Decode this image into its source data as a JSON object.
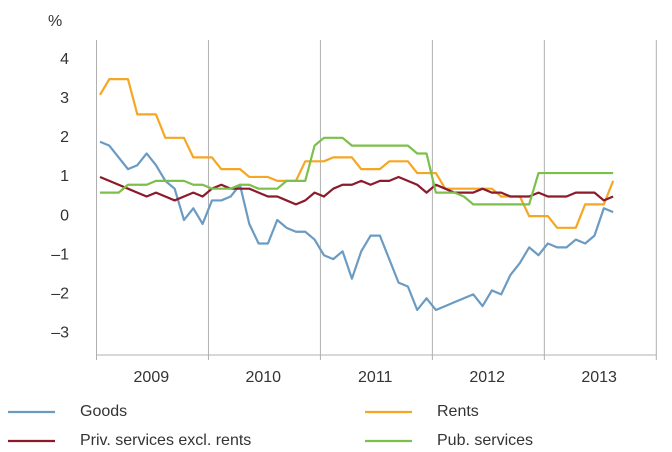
{
  "chart_data": {
    "type": "line",
    "y_label": "%",
    "categories": [
      null,
      null,
      null,
      null,
      null,
      null,
      "2009",
      null,
      null,
      null,
      null,
      null,
      null,
      null,
      null,
      null,
      null,
      null,
      "2010",
      null,
      null,
      null,
      null,
      null,
      null,
      null,
      null,
      null,
      null,
      null,
      "2011",
      null,
      null,
      null,
      null,
      null,
      null,
      null,
      null,
      null,
      null,
      null,
      "2012",
      null,
      null,
      null,
      null,
      null,
      null,
      null,
      null,
      null,
      null,
      null,
      "2013",
      null
    ],
    "ylim": [
      -3.55,
      4.5
    ],
    "yticks": [
      {
        "value": -3,
        "label": "–3"
      },
      {
        "value": -2,
        "label": "–2"
      },
      {
        "value": -1,
        "label": "–1"
      },
      0,
      1,
      2,
      3,
      4
    ],
    "series": [
      {
        "name": "Goods",
        "color": "#6b9bc3",
        "values": [
          1.9,
          1.8,
          1.5,
          1.2,
          1.3,
          1.6,
          1.3,
          0.9,
          0.7,
          -0.1,
          0.2,
          -0.2,
          0.4,
          0.4,
          0.5,
          0.8,
          -0.2,
          -0.7,
          -0.7,
          -0.1,
          -0.3,
          -0.4,
          -0.4,
          -0.6,
          -1.0,
          -1.1,
          -0.9,
          -1.6,
          -0.9,
          -0.5,
          -0.5,
          -1.1,
          -1.7,
          -1.8,
          -2.4,
          -2.1,
          -2.4,
          -2.3,
          -2.2,
          -2.1,
          -2.0,
          -2.3,
          -1.9,
          -2.0,
          -1.5,
          -1.2,
          -0.8,
          -1.0,
          -0.7,
          -0.8,
          -0.8,
          -0.6,
          -0.7,
          -0.5,
          0.2,
          0.1
        ]
      },
      {
        "name": "Rents",
        "color": "#f5a623",
        "values": [
          3.1,
          3.5,
          3.5,
          3.5,
          2.6,
          2.6,
          2.6,
          2.0,
          2.0,
          2.0,
          1.5,
          1.5,
          1.5,
          1.2,
          1.2,
          1.2,
          1.0,
          1.0,
          1.0,
          0.9,
          0.9,
          0.9,
          1.4,
          1.4,
          1.4,
          1.5,
          1.5,
          1.5,
          1.2,
          1.2,
          1.2,
          1.4,
          1.4,
          1.4,
          1.1,
          1.1,
          1.1,
          0.7,
          0.7,
          0.7,
          0.7,
          0.7,
          0.7,
          0.5,
          0.5,
          0.5,
          0.0,
          0.0,
          0.0,
          -0.3,
          -0.3,
          -0.3,
          0.3,
          0.3,
          0.3,
          0.9
        ]
      },
      {
        "name": "Priv. services excl. rents",
        "color": "#8b1a2b",
        "values": [
          1.0,
          0.9,
          0.8,
          0.7,
          0.6,
          0.5,
          0.6,
          0.5,
          0.4,
          0.5,
          0.6,
          0.5,
          0.7,
          0.8,
          0.7,
          0.7,
          0.7,
          0.6,
          0.5,
          0.5,
          0.4,
          0.3,
          0.4,
          0.6,
          0.5,
          0.7,
          0.8,
          0.8,
          0.9,
          0.8,
          0.9,
          0.9,
          1.0,
          0.9,
          0.8,
          0.6,
          0.8,
          0.7,
          0.6,
          0.6,
          0.6,
          0.7,
          0.6,
          0.6,
          0.5,
          0.5,
          0.5,
          0.6,
          0.5,
          0.5,
          0.5,
          0.6,
          0.6,
          0.6,
          0.4,
          0.5
        ]
      },
      {
        "name": "Pub. services",
        "color": "#7cc04b",
        "values": [
          0.6,
          0.6,
          0.6,
          0.8,
          0.8,
          0.8,
          0.9,
          0.9,
          0.9,
          0.9,
          0.8,
          0.8,
          0.7,
          0.7,
          0.7,
          0.8,
          0.8,
          0.7,
          0.7,
          0.7,
          0.9,
          0.9,
          0.9,
          1.8,
          2.0,
          2.0,
          2.0,
          1.8,
          1.8,
          1.8,
          1.8,
          1.8,
          1.8,
          1.8,
          1.6,
          1.6,
          0.6,
          0.6,
          0.6,
          0.5,
          0.3,
          0.3,
          0.3,
          0.3,
          0.3,
          0.3,
          0.3,
          1.1,
          1.1,
          1.1,
          1.1,
          1.1,
          1.1,
          1.1,
          1.1,
          1.1
        ]
      }
    ]
  }
}
